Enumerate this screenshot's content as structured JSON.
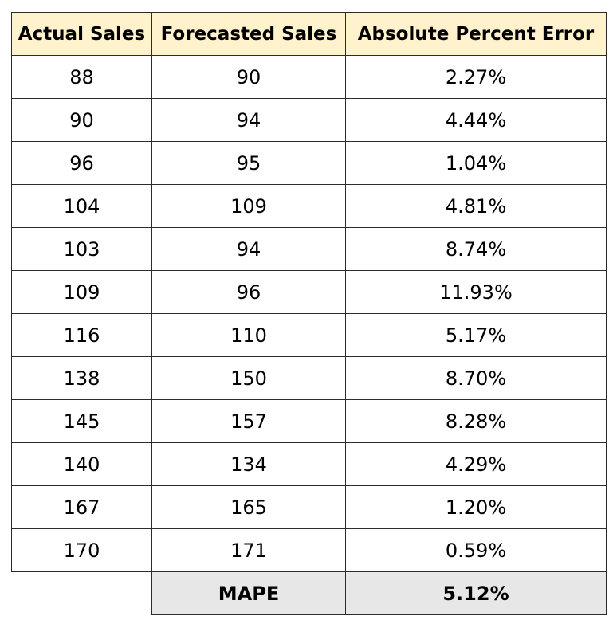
{
  "table": {
    "headers": [
      "Actual Sales",
      "Forecasted Sales",
      "Absolute Percent Error"
    ],
    "rows": [
      [
        88,
        90,
        "2.27%"
      ],
      [
        90,
        94,
        "4.44%"
      ],
      [
        96,
        95,
        "1.04%"
      ],
      [
        104,
        109,
        "4.81%"
      ],
      [
        103,
        94,
        "8.74%"
      ],
      [
        109,
        96,
        "11.93%"
      ],
      [
        116,
        110,
        "5.17%"
      ],
      [
        138,
        150,
        "8.70%"
      ],
      [
        145,
        157,
        "8.28%"
      ],
      [
        140,
        134,
        "4.29%"
      ],
      [
        167,
        165,
        "1.20%"
      ],
      [
        170,
        171,
        "0.59%"
      ]
    ],
    "footer": {
      "label": "MAPE",
      "value": "5.12%"
    }
  }
}
